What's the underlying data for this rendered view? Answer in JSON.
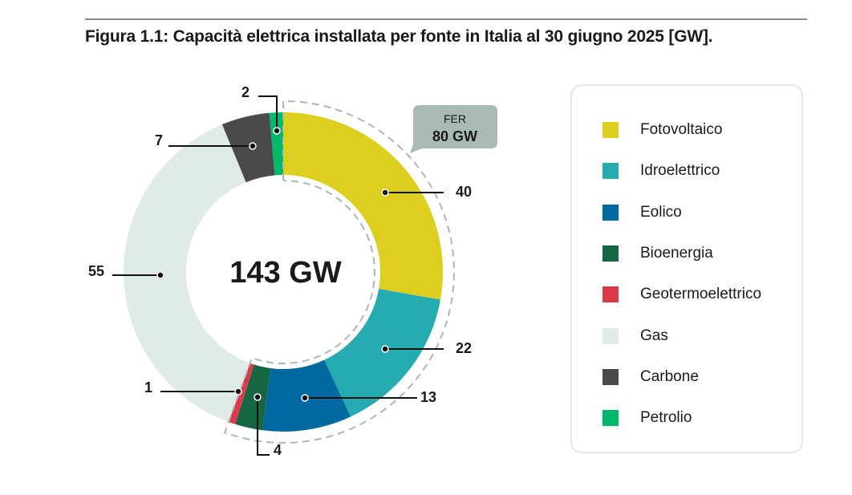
{
  "chart_data": {
    "type": "pie",
    "variant": "donut",
    "title": "Figura 1.1: Capacità elettrica installata per fonte in Italia al 30 giugno 2025 [GW].",
    "center_label": "143 GW",
    "unit": "GW",
    "categories": [
      "Fotovoltaico",
      "Idroelettrico",
      "Eolico",
      "Bioenergia",
      "Geotermoelettrico",
      "Gas",
      "Carbone",
      "Petrolio"
    ],
    "values": [
      40,
      22,
      13,
      4,
      1,
      55,
      7,
      2
    ],
    "data_labels": [
      "40",
      "22",
      "13",
      "4",
      "1",
      "55",
      "7",
      "2"
    ],
    "colors": [
      "#dccf1f",
      "#26abb0",
      "#006aa0",
      "#166644",
      "#dc3a48",
      "#e0eae6",
      "#4a4a4a",
      "#00b86a"
    ],
    "group_annotation": {
      "label": "FER",
      "value": "80 GW",
      "categories": [
        "Fotovoltaico",
        "Idroelettrico",
        "Eolico",
        "Bioenergia",
        "Geotermoelettrico"
      ],
      "color": "#a9b9b3"
    },
    "legend_placement": "right"
  }
}
